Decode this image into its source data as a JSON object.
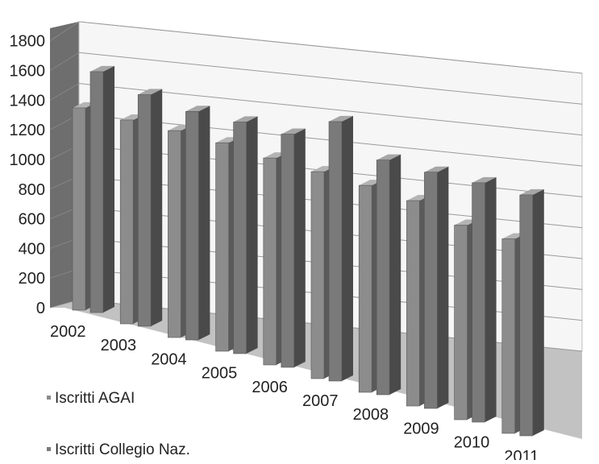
{
  "chart_data": {
    "type": "bar",
    "categories": [
      "2002",
      "2003",
      "2004",
      "2005",
      "2006",
      "2007",
      "2008",
      "2009",
      "2010",
      "2011"
    ],
    "series": [
      {
        "name": "Iscritti AGAI",
        "values": [
          1310,
          1320,
          1340,
          1350,
          1340,
          1340,
          1340,
          1330,
          1260,
          1260
        ]
      },
      {
        "name": "Iscritti Collegio Naz.",
        "values": [
          1560,
          1500,
          1480,
          1500,
          1510,
          1680,
          1520,
          1530,
          1550,
          1560
        ]
      }
    ],
    "y_ticks": [
      "0",
      "200",
      "400",
      "600",
      "800",
      "1000",
      "1200",
      "1400",
      "1600",
      "1800"
    ],
    "ylim": [
      0,
      1800
    ],
    "grid": true,
    "legend_position": "bottom-left",
    "colors": {
      "series_front": [
        "#8c8c8c",
        "#7a7a7a"
      ],
      "series_side": [
        "#5a5a5a",
        "#4a4a4a"
      ],
      "series_top": [
        "#b4b4b4",
        "#a6a6a6"
      ],
      "back_wall": "#f6f6f6",
      "side_wall": "#6e6e6e",
      "floor": "#c2c2c2",
      "gridline": "#9a9a9a"
    }
  }
}
